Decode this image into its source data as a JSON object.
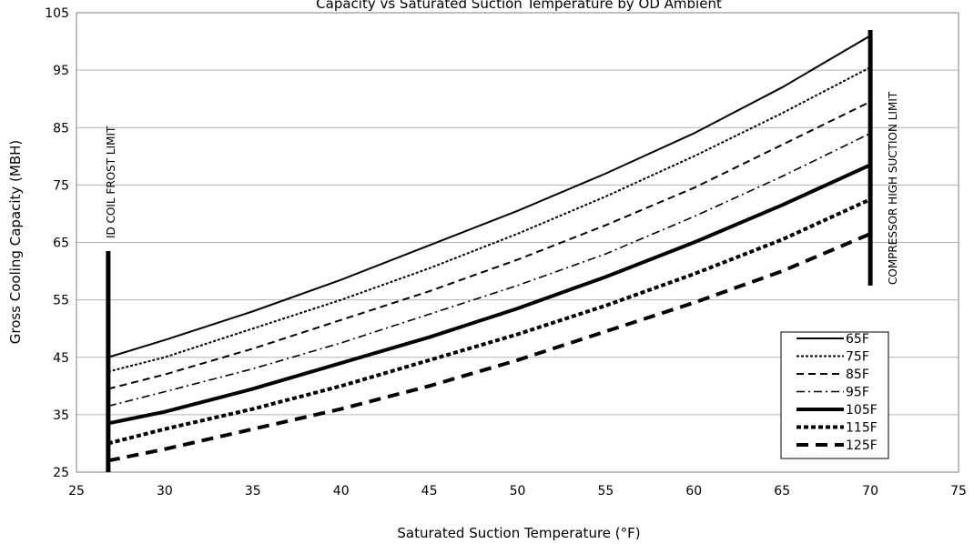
{
  "chart_data": {
    "type": "line",
    "title": "Capacity vs Saturated Suction Temperature by OD Ambient",
    "xlabel": "Saturated Suction Temperature (°F)",
    "ylabel": "Gross Cooling Capacity (MBH)",
    "xlim": [
      25,
      75
    ],
    "ylim": [
      25,
      105
    ],
    "xticks": [
      25,
      30,
      35,
      40,
      45,
      50,
      55,
      60,
      65,
      70,
      75
    ],
    "yticks": [
      25,
      35,
      45,
      55,
      65,
      75,
      85,
      95,
      105
    ],
    "grid": "horizontal",
    "legend_position": "bottom-right",
    "limits": [
      {
        "label": "ID COIL FROST LIMIT",
        "x": 26.8,
        "y_range": [
          25,
          63.5
        ]
      },
      {
        "label": "COMPRESSOR HIGH SUCTION LIMIT",
        "x": 70,
        "y_range": [
          57.5,
          102
        ]
      }
    ],
    "series": [
      {
        "name": "65F",
        "style": "solid-thin",
        "x": [
          26.8,
          30,
          35,
          40,
          45,
          50,
          55,
          60,
          65,
          70
        ],
        "y": [
          45.0,
          48.0,
          53.0,
          58.5,
          64.5,
          70.5,
          77.0,
          84.0,
          92.0,
          101.0
        ]
      },
      {
        "name": "75F",
        "style": "dot-thin",
        "x": [
          26.8,
          30,
          35,
          40,
          45,
          50,
          55,
          60,
          65,
          70
        ],
        "y": [
          42.5,
          45.0,
          50.0,
          55.0,
          60.5,
          66.5,
          73.0,
          80.0,
          87.5,
          95.5
        ]
      },
      {
        "name": "85F",
        "style": "dash-thin",
        "x": [
          26.8,
          30,
          35,
          40,
          45,
          50,
          55,
          60,
          65,
          70
        ],
        "y": [
          39.5,
          42.0,
          46.5,
          51.5,
          56.5,
          62.0,
          68.0,
          74.5,
          82.0,
          89.5
        ]
      },
      {
        "name": "95F",
        "style": "dashdot-thin",
        "x": [
          26.8,
          30,
          35,
          40,
          45,
          50,
          55,
          60,
          65,
          70
        ],
        "y": [
          36.5,
          39.0,
          43.0,
          47.5,
          52.5,
          57.5,
          63.0,
          69.5,
          76.5,
          84.0
        ]
      },
      {
        "name": "105F",
        "style": "solid-thick",
        "x": [
          26.8,
          30,
          35,
          40,
          45,
          50,
          55,
          60,
          65,
          70
        ],
        "y": [
          33.5,
          35.5,
          39.5,
          44.0,
          48.5,
          53.5,
          59.0,
          65.0,
          71.5,
          78.5
        ]
      },
      {
        "name": "115F",
        "style": "dot-thick",
        "x": [
          26.8,
          30,
          35,
          40,
          45,
          50,
          55,
          60,
          65,
          70
        ],
        "y": [
          30.0,
          32.5,
          36.0,
          40.0,
          44.5,
          49.0,
          54.0,
          59.5,
          65.5,
          72.5
        ]
      },
      {
        "name": "125F",
        "style": "dash-thick",
        "x": [
          26.8,
          30,
          35,
          40,
          45,
          50,
          55,
          60,
          65,
          70
        ],
        "y": [
          27.0,
          29.0,
          32.5,
          36.0,
          40.0,
          44.5,
          49.5,
          54.5,
          60.0,
          66.5
        ]
      }
    ]
  }
}
